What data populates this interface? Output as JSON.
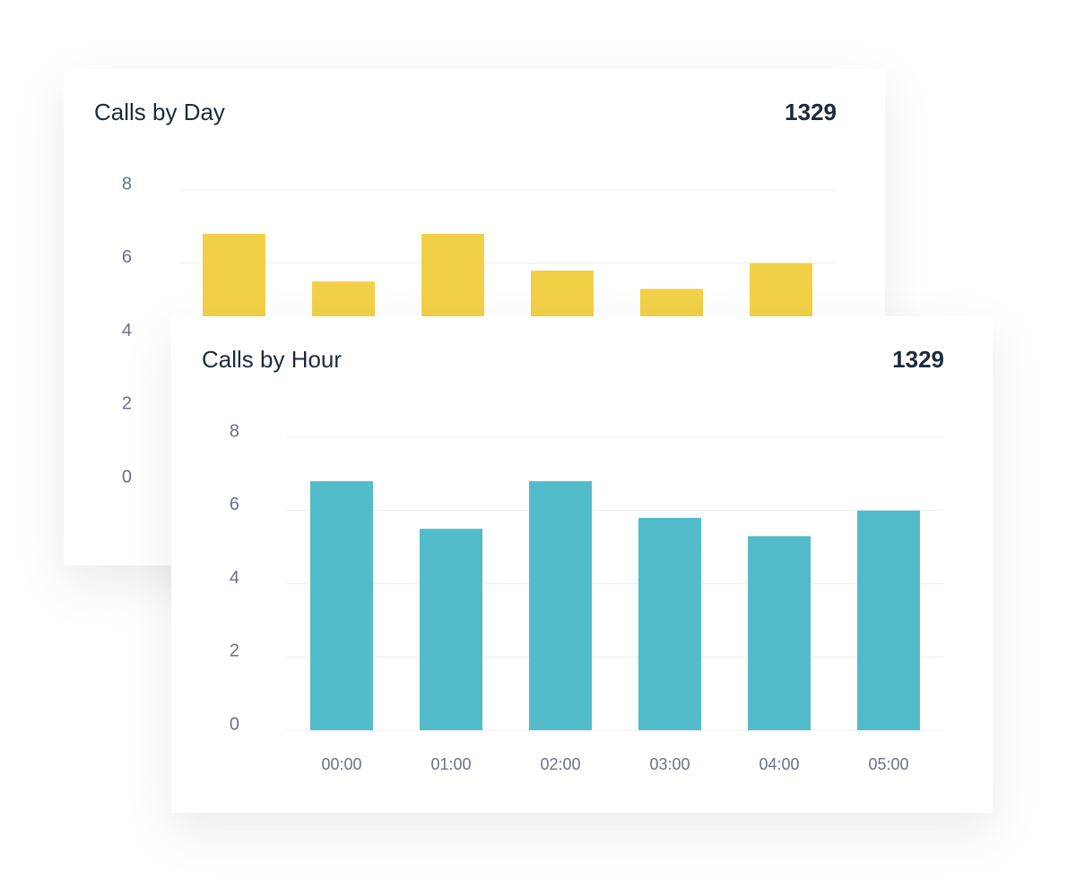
{
  "chart_data": [
    {
      "type": "bar",
      "title": "Calls by Day",
      "total": 1329,
      "categories": [
        null,
        null,
        null,
        null,
        null,
        null
      ],
      "values": [
        6.8,
        5.5,
        6.8,
        5.8,
        5.3,
        6.0
      ],
      "color": "#f2d046",
      "ylim": [
        0,
        8
      ],
      "yticks": [
        0,
        2,
        4,
        6,
        8
      ],
      "grid": true
    },
    {
      "type": "bar",
      "title": "Calls by Hour",
      "total": 1329,
      "categories": [
        "00:00",
        "01:00",
        "02:00",
        "03:00",
        "04:00",
        "05:00"
      ],
      "values": [
        6.8,
        5.5,
        6.8,
        5.8,
        5.3,
        6.0
      ],
      "color": "#52bccb",
      "ylim": [
        0,
        8
      ],
      "yticks": [
        0,
        2,
        4,
        6,
        8
      ],
      "grid": true
    }
  ]
}
